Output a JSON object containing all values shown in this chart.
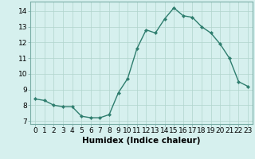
{
  "x": [
    0,
    1,
    2,
    3,
    4,
    5,
    6,
    7,
    8,
    9,
    10,
    11,
    12,
    13,
    14,
    15,
    16,
    17,
    18,
    19,
    20,
    21,
    22,
    23
  ],
  "y": [
    8.4,
    8.3,
    8.0,
    7.9,
    7.9,
    7.3,
    7.2,
    7.2,
    7.4,
    8.8,
    9.7,
    11.6,
    12.8,
    12.6,
    13.5,
    14.2,
    13.7,
    13.6,
    13.0,
    12.6,
    11.9,
    11.0,
    9.5,
    9.2
  ],
  "line_color": "#2e7d6e",
  "marker": "D",
  "marker_size": 2.2,
  "bg_color": "#d6f0ee",
  "grid_color": "#b0d4cc",
  "xlabel": "Humidex (Indice chaleur)",
  "xlabel_fontsize": 7.5,
  "xlim": [
    -0.5,
    23.5
  ],
  "ylim": [
    6.8,
    14.6
  ],
  "yticks": [
    7,
    8,
    9,
    10,
    11,
    12,
    13,
    14
  ],
  "xticks": [
    0,
    1,
    2,
    3,
    4,
    5,
    6,
    7,
    8,
    9,
    10,
    11,
    12,
    13,
    14,
    15,
    16,
    17,
    18,
    19,
    20,
    21,
    22,
    23
  ],
  "tick_fontsize": 6.5,
  "line_width": 1.0
}
